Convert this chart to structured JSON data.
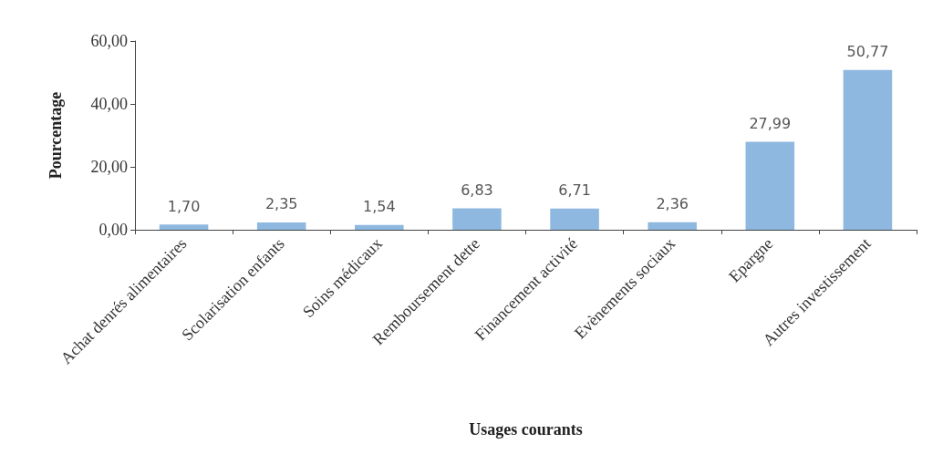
{
  "chart_data": {
    "type": "bar",
    "xlabel": "Usages courants",
    "ylabel": "Pourcentage",
    "categories": [
      "Achat denrés alimentaires",
      "Scolarisation enfants",
      "Soins médicaux",
      "Remboursement dette",
      "Financement activité",
      "Evènements sociaux",
      "Epargne",
      "Autres investissement"
    ],
    "values": [
      1.7,
      2.35,
      1.54,
      6.83,
      6.71,
      2.36,
      27.99,
      50.77
    ],
    "value_labels": [
      "1,70",
      "2,35",
      "1,54",
      "6,83",
      "6,71",
      "2,36",
      "27,99",
      "50,77"
    ],
    "color": "#8fb8e0",
    "ylim": [
      0,
      60
    ],
    "yticks": [
      {
        "value": 0,
        "label": "0,00"
      },
      {
        "value": 20,
        "label": "20,00"
      },
      {
        "value": 40,
        "label": "40,00"
      },
      {
        "value": 60,
        "label": "60,00"
      }
    ],
    "grid": false
  }
}
